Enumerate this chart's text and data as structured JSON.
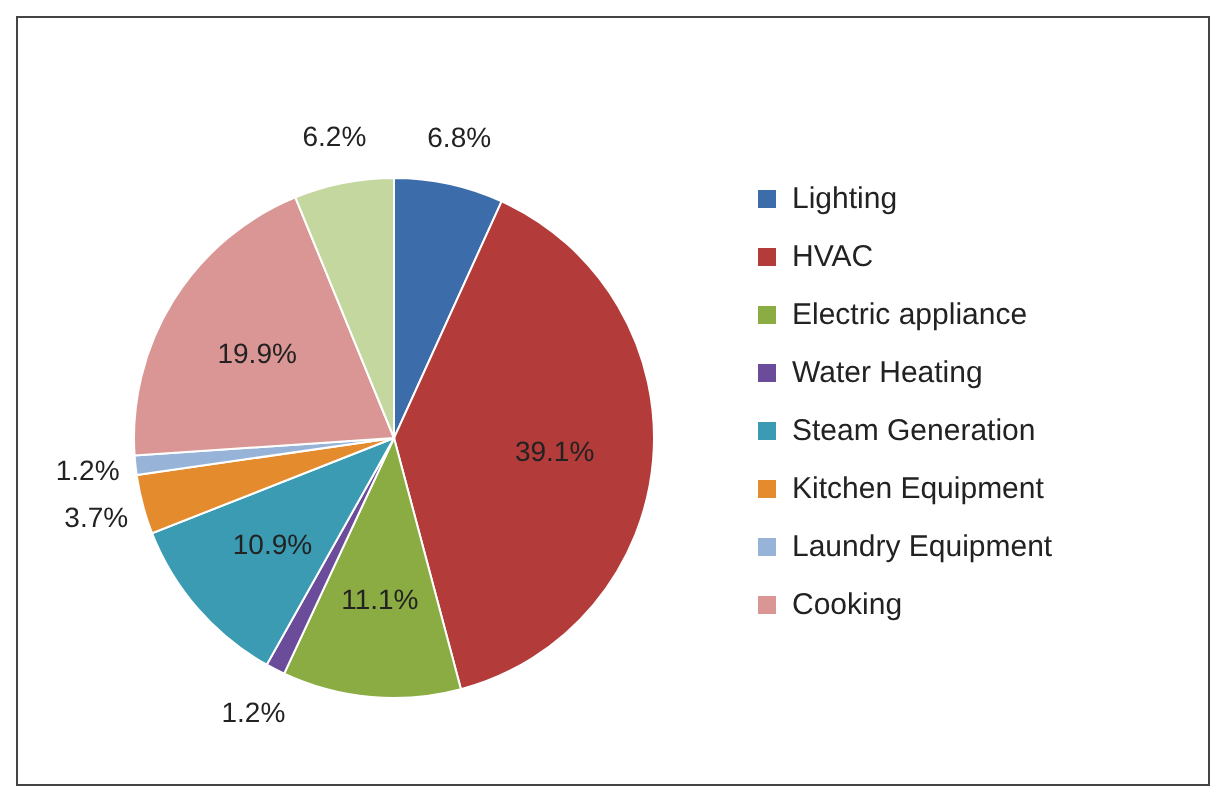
{
  "chart_data": {
    "type": "pie",
    "categories": [
      "Lighting",
      "HVAC",
      "Electric appliance",
      "Water Heating",
      "Steam Generation",
      "Kitchen Equipment",
      "Laundry Equipment",
      "Cooking",
      null
    ],
    "values": [
      6.8,
      39.1,
      11.1,
      1.2,
      10.9,
      3.7,
      1.2,
      19.9,
      6.2
    ],
    "colors": [
      "#3d6caa",
      "#b33b39",
      "#8aac42",
      "#6b4c9a",
      "#3a9bb2",
      "#e38b2d",
      "#97b3d8",
      "#d99694",
      "#c4d79e"
    ],
    "value_labels": [
      "6.8%",
      "39.1%",
      "11.1%",
      "1.2%",
      "10.9%",
      "3.7%",
      "1.2%",
      "19.9%",
      "6.2%"
    ],
    "legend": "right"
  }
}
